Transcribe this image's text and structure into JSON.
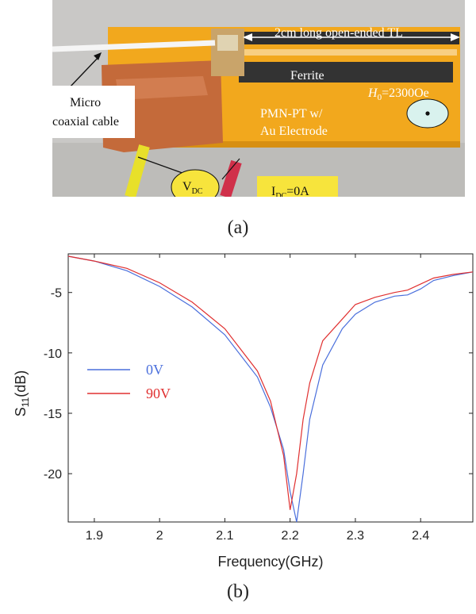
{
  "figure": {
    "caption_a": "(a)",
    "caption_b": "(b)"
  },
  "photo": {
    "labels": {
      "tl": "2cm long open-ended TL",
      "ferrite": "Ferrite",
      "h0": "=2300Oe",
      "h0_symbol": "H",
      "h0_sub": "0",
      "pmn1": "PMN-PT w/",
      "pmn2": "Au Electrode",
      "coax1": "Micro",
      "coax2": "coaxial cable",
      "vdc": "V",
      "vdc_sub": "DC",
      "idc": "I",
      "idc_sub": "DC",
      "idc_val": "=0A"
    },
    "colors": {
      "background": "#c9c8c6",
      "substrate": "#f2a81d",
      "trace": "#2e2e2e",
      "copper": "#c46a3a",
      "highlight": "#f7e43c",
      "marker": "#d9f2ee"
    }
  },
  "chart_data": {
    "type": "line",
    "xlabel": "Frequency(GHz)",
    "ylabel": "S",
    "ylabel_sub": "11",
    "ylabel_unit": "(dB)",
    "xlim": [
      1.86,
      2.48
    ],
    "ylim": [
      -24,
      -1.8
    ],
    "xticks": [
      1.9,
      2,
      2.1,
      2.2,
      2.3,
      2.4
    ],
    "xtick_labels": [
      "1.9",
      "2",
      "2.1",
      "2.2",
      "2.3",
      "2.4"
    ],
    "yticks": [
      -5,
      -10,
      -15,
      -20
    ],
    "ytick_labels": [
      "-5",
      "-10",
      "-15",
      "-20"
    ],
    "grid": false,
    "legend": "left-middle",
    "series": [
      {
        "name": "0V",
        "color": "#4a6fdc",
        "x": [
          1.86,
          1.9,
          1.95,
          2.0,
          2.05,
          2.1,
          2.15,
          2.17,
          2.19,
          2.2,
          2.21,
          2.22,
          2.23,
          2.25,
          2.28,
          2.3,
          2.33,
          2.36,
          2.38,
          2.4,
          2.42,
          2.45,
          2.48
        ],
        "y": [
          -2.0,
          -2.4,
          -3.2,
          -4.5,
          -6.2,
          -8.5,
          -12.0,
          -14.5,
          -18.0,
          -21.5,
          -24.0,
          -20.0,
          -15.5,
          -11.0,
          -8.0,
          -6.8,
          -5.8,
          -5.3,
          -5.2,
          -4.7,
          -4.0,
          -3.6,
          -3.3
        ]
      },
      {
        "name": "90V",
        "color": "#e03030",
        "x": [
          1.86,
          1.9,
          1.95,
          2.0,
          2.05,
          2.1,
          2.15,
          2.17,
          2.19,
          2.2,
          2.21,
          2.22,
          2.23,
          2.25,
          2.28,
          2.3,
          2.33,
          2.36,
          2.38,
          2.4,
          2.42,
          2.45,
          2.48
        ],
        "y": [
          -2.0,
          -2.4,
          -3.0,
          -4.2,
          -5.8,
          -8.0,
          -11.5,
          -14.0,
          -18.5,
          -23.0,
          -20.0,
          -15.5,
          -12.5,
          -9.0,
          -7.2,
          -6.0,
          -5.4,
          -5.0,
          -4.8,
          -4.3,
          -3.8,
          -3.5,
          -3.3
        ]
      }
    ]
  }
}
